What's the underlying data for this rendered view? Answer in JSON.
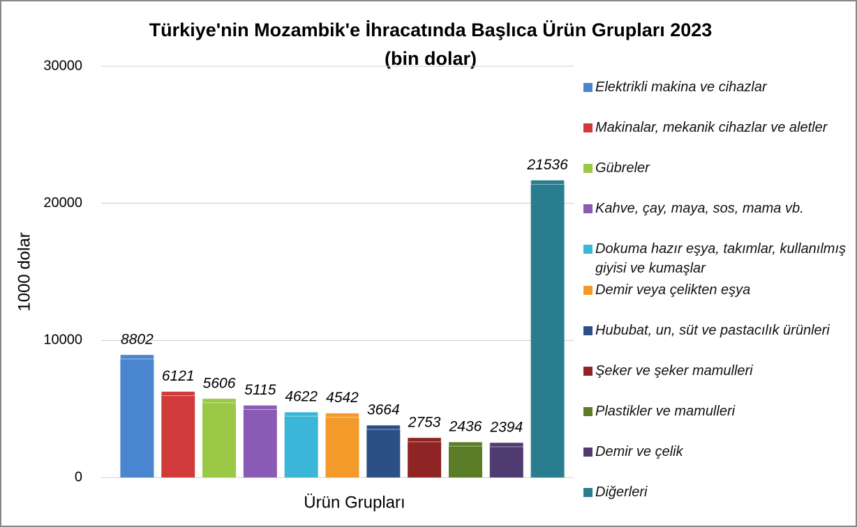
{
  "chart_data": {
    "type": "bar",
    "title": "Türkiye'nin Mozambik'e İhracatında Başlıca Ürün Grupları 2023",
    "subtitle": "(bin dolar)",
    "x_label": "Ürün Grupları",
    "y_label": "1000 dolar",
    "categories": [
      null
    ],
    "series": [
      {
        "name": "Elektrikli makina ve cihazlar",
        "color": "#4a86d0",
        "values": [
          8802
        ]
      },
      {
        "name": "Makinalar, mekanik cihazlar ve aletler",
        "color": "#d03a3a",
        "values": [
          6121
        ]
      },
      {
        "name": "Gübreler",
        "color": "#9bc845",
        "values": [
          5606
        ]
      },
      {
        "name": "Kahve, çay, maya, sos, mama vb.",
        "color": "#8a5bb5",
        "values": [
          5115
        ]
      },
      {
        "name": "Dokuma hazır eşya, takımlar, kullanılmış giyisi ve kumaşlar",
        "color": "#3bb6d8",
        "values": [
          4622
        ]
      },
      {
        "name": "Demir veya çelikten eşya",
        "color": "#f39a2a",
        "values": [
          4542
        ]
      },
      {
        "name": "Hububat, un, süt ve pastacılık ürünleri",
        "color": "#2c4f86",
        "values": [
          3664
        ]
      },
      {
        "name": "Şeker ve şeker mamulleri",
        "color": "#8f2424",
        "values": [
          2753
        ]
      },
      {
        "name": "Plastikler ve mamulleri",
        "color": "#5b7d27",
        "values": [
          2436
        ]
      },
      {
        "name": "Demir ve çelik",
        "color": "#4f3b70",
        "values": [
          2394
        ]
      },
      {
        "name": "Diğerleri",
        "color": "#2a7d8f",
        "values": [
          21536
        ]
      }
    ],
    "ylim": [
      0,
      30000
    ],
    "yticks": [
      0,
      10000,
      20000,
      30000
    ],
    "grid": true,
    "legend": "right"
  }
}
